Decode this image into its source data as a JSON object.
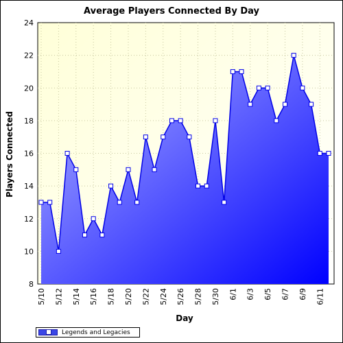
{
  "chart_data": {
    "type": "area",
    "title": "Average Players Connected By Day",
    "xlabel": "Day",
    "ylabel": "Players Connected",
    "ylim": [
      8,
      24
    ],
    "yticks": [
      8,
      10,
      12,
      14,
      16,
      18,
      20,
      22,
      24
    ],
    "grid": true,
    "legend_position": "bottom-left",
    "colors": {
      "line": "#0000e6",
      "fill_light": "#b4b8ff",
      "fill_dark": "#0000ff",
      "bg_light": "#ffffd8",
      "bg_dark": "#ffffff",
      "marker_fill": "#ffffff"
    },
    "x_tick_labels": [
      "5/10",
      "5/12",
      "5/14",
      "5/16",
      "5/18",
      "5/20",
      "5/22",
      "5/24",
      "5/26",
      "5/28",
      "5/30",
      "6/1",
      "6/3",
      "6/5",
      "6/7",
      "6/9",
      "6/11"
    ],
    "series": [
      {
        "name": "Legends and Legacies",
        "x": [
          "5/10",
          "5/11",
          "5/12",
          "5/13",
          "5/14",
          "5/15",
          "5/16",
          "5/17",
          "5/18",
          "5/19",
          "5/20",
          "5/21",
          "5/22",
          "5/23",
          "5/24",
          "5/25",
          "5/26",
          "5/27",
          "5/28",
          "5/29",
          "5/30",
          "5/31",
          "6/1",
          "6/2",
          "6/3",
          "6/4",
          "6/5",
          "6/6",
          "6/7",
          "6/8",
          "6/9",
          "6/10",
          "6/11",
          "6/12"
        ],
        "values": [
          13,
          13,
          10,
          16,
          15,
          11,
          12,
          11,
          14,
          13,
          15,
          13,
          17,
          15,
          17,
          18,
          18,
          17,
          14,
          14,
          18,
          13,
          21,
          21,
          19,
          20,
          20,
          18,
          19,
          22,
          20,
          19,
          16,
          16
        ]
      }
    ]
  }
}
